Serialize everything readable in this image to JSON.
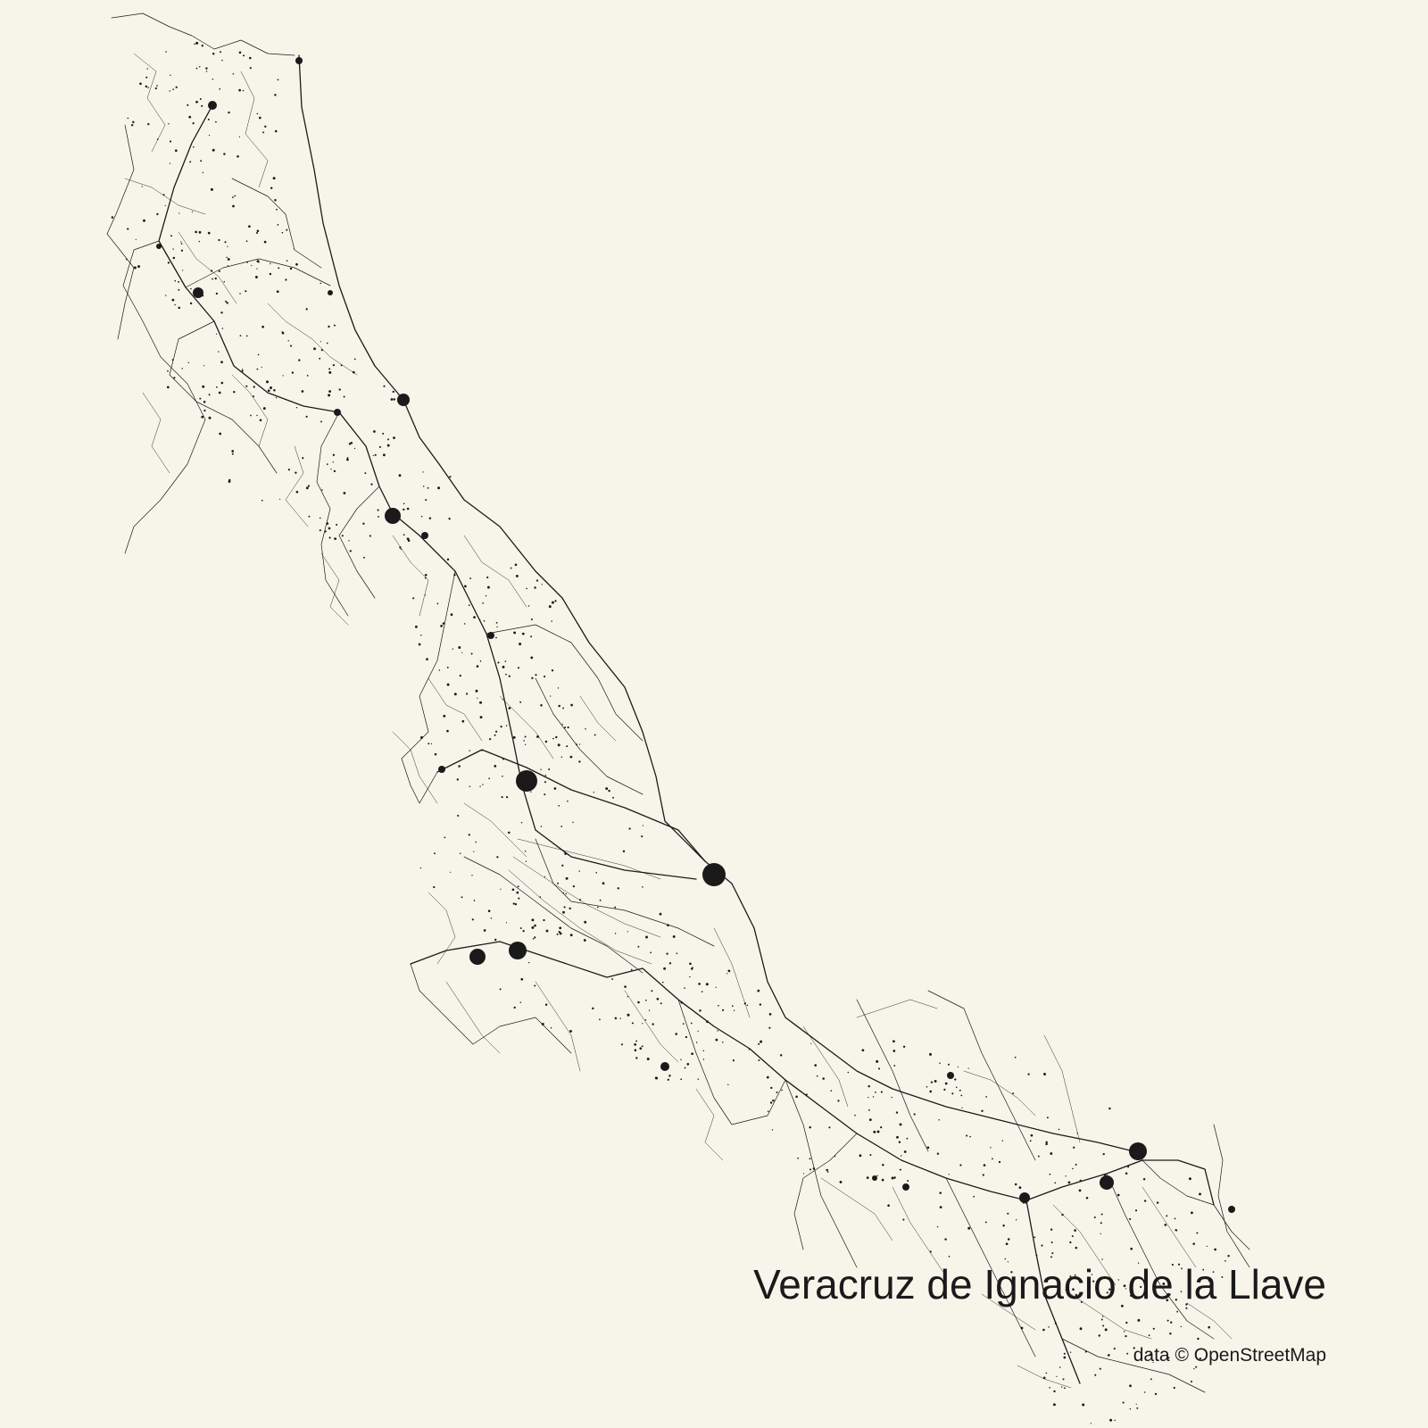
{
  "map": {
    "title": "Veracruz de Ignacio de la Llave",
    "attribution": "data © OpenStreetMap",
    "colors": {
      "background": "#f7f4ea",
      "roads": "#1a1a1a"
    }
  }
}
